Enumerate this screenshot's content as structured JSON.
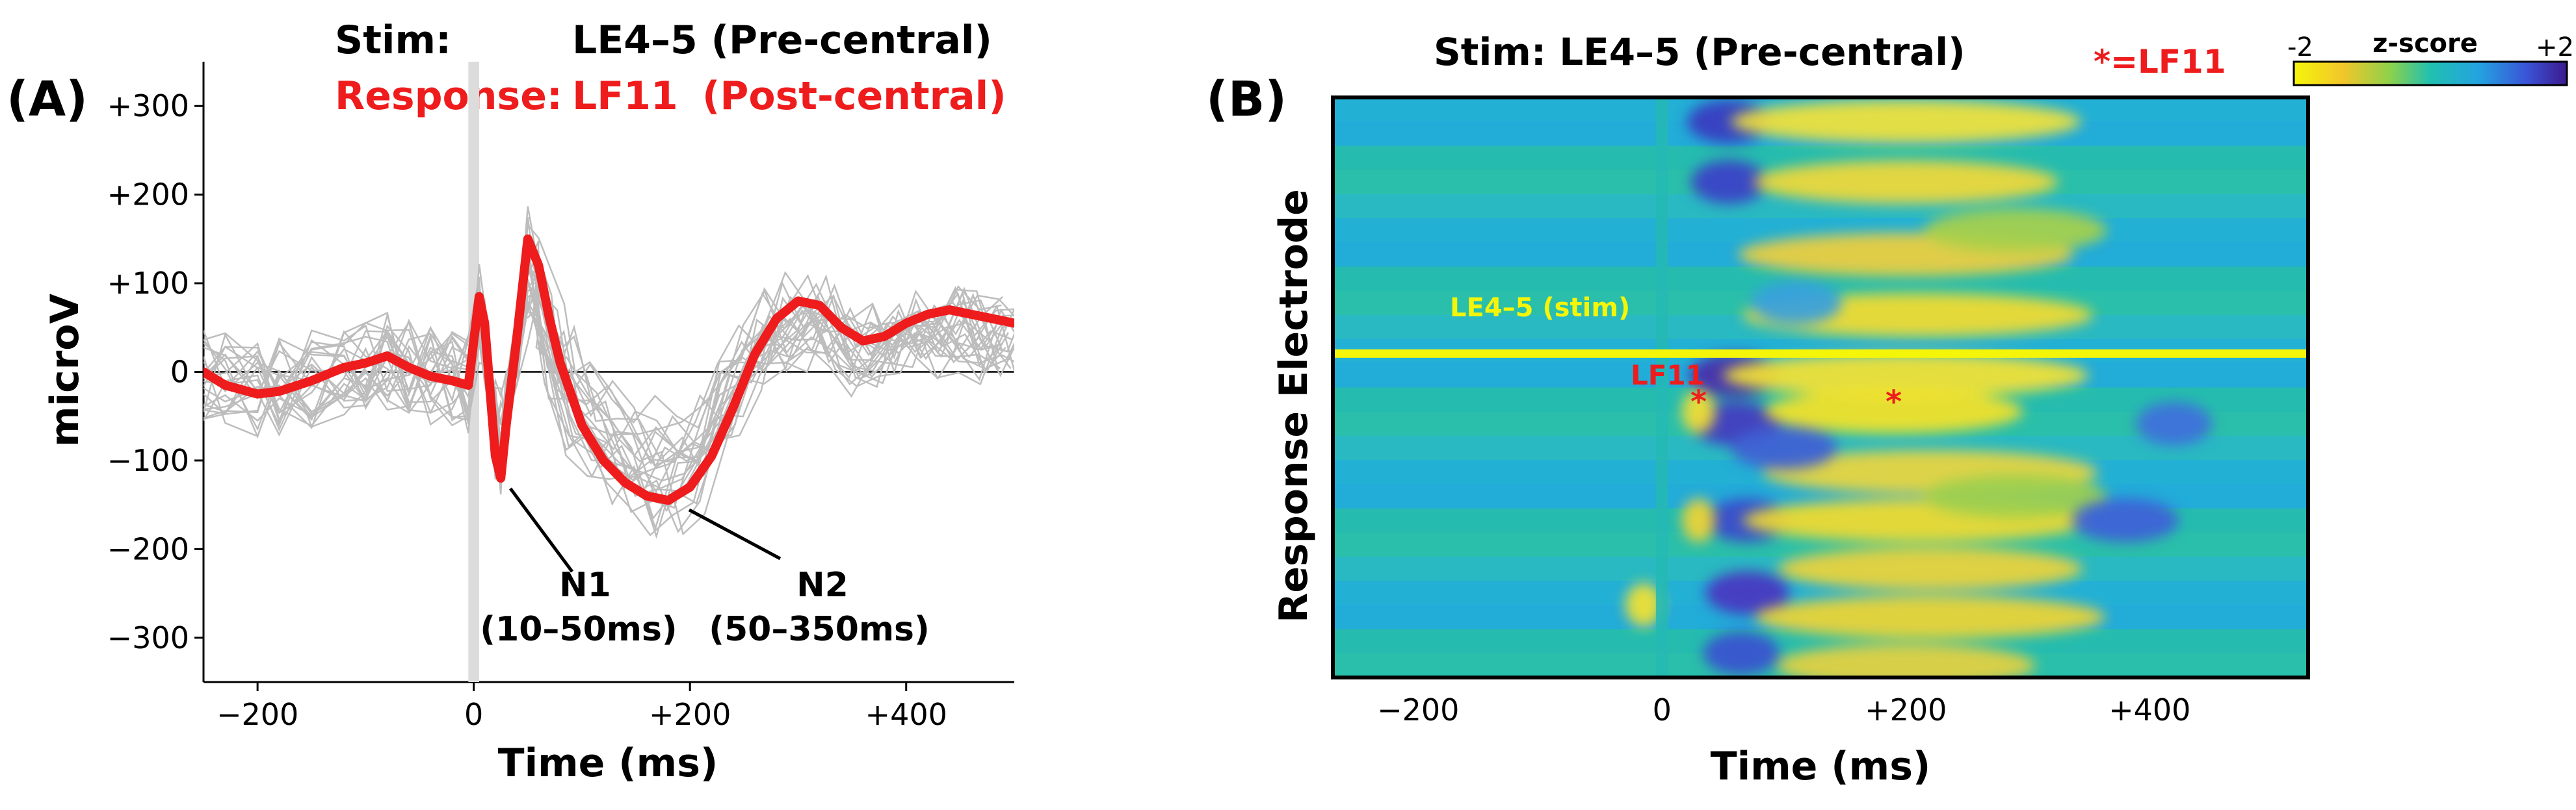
{
  "panel_a": {
    "label": "(A)",
    "stim_label": "Stim:",
    "stim_value": "LE4–5 (Pre-central)",
    "response_label": "Response:",
    "response_value": "LF11",
    "response_region": "(Post-central)"
  },
  "panel_b": {
    "label": "(B)",
    "title": "Stim: LE4–5 (Pre-central)",
    "marker_note": "*=LF11",
    "stim_row_label": "LE4–5 (stim)",
    "response_row_label": "LF11",
    "star": "*",
    "colorbar": {
      "title": "z-score",
      "min_label": "-2",
      "max_label": "+2"
    }
  },
  "colors": {
    "average": "#ee1c1c",
    "trials": "#bdbdbd",
    "stim_line": "#f5f50a",
    "response_text": "#ee1c1c"
  },
  "chart_data": [
    {
      "type": "line",
      "panel": "A",
      "xlabel": "Time (ms)",
      "ylabel": "microV",
      "xlim": [
        -250,
        500
      ],
      "ylim": [
        -350,
        350
      ],
      "x_ticks": [
        -200,
        0,
        200,
        400
      ],
      "x_tick_labels": [
        "−200",
        "0",
        "+200",
        "+400"
      ],
      "y_ticks": [
        300,
        200,
        100,
        0,
        -100,
        -200,
        -300
      ],
      "y_tick_labels": [
        "+300",
        "+200",
        "+100",
        "0",
        "−100",
        "−200",
        "−300"
      ],
      "stim_artifact_window_ms": [
        -5,
        5
      ],
      "series": [
        {
          "name": "average",
          "x": [
            -250,
            -230,
            -200,
            -180,
            -150,
            -120,
            -100,
            -80,
            -60,
            -40,
            -20,
            -5,
            5,
            10,
            15,
            20,
            25,
            30,
            40,
            50,
            60,
            70,
            80,
            100,
            120,
            140,
            160,
            180,
            200,
            220,
            240,
            260,
            280,
            300,
            320,
            340,
            360,
            380,
            400,
            420,
            440,
            460,
            480,
            500
          ],
          "values": [
            0,
            -15,
            -25,
            -22,
            -10,
            5,
            10,
            18,
            5,
            -5,
            -10,
            -15,
            85,
            55,
            -20,
            -95,
            -120,
            -60,
            40,
            150,
            120,
            60,
            10,
            -60,
            -100,
            -125,
            -140,
            -145,
            -130,
            -95,
            -40,
            20,
            60,
            80,
            75,
            50,
            35,
            40,
            55,
            65,
            70,
            65,
            60,
            55
          ]
        }
      ],
      "annotations": [
        {
          "label": "N1",
          "sublabel": "(10–50ms)",
          "x": 30,
          "y": -120
        },
        {
          "label": "N2",
          "sublabel": "(50–350ms)",
          "x": 175,
          "y": -145
        }
      ]
    },
    {
      "type": "heatmap",
      "panel": "B",
      "xlabel": "Time (ms)",
      "ylabel": "Response Electrode",
      "xlim": [
        -270,
        530
      ],
      "x_ticks": [
        -200,
        0,
        200,
        400
      ],
      "x_tick_labels": [
        "−200",
        "0",
        "+200",
        "+400"
      ],
      "zlim": [
        -2,
        2
      ],
      "colormap": "yellow (-2) → green → blue → purple (+2)",
      "stim_row_index": 10,
      "response_row_index": 12,
      "n_rows": 24,
      "marker_times_ms": [
        30,
        190
      ]
    }
  ]
}
